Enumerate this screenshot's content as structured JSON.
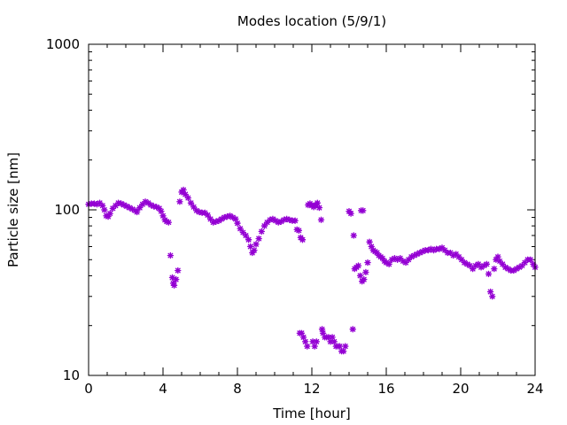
{
  "chart_data": {
    "type": "scatter",
    "title": "Modes location (5/9/1)",
    "xlabel": "Time [hour]",
    "ylabel": "Particle size [nm]",
    "xlim": [
      0,
      24
    ],
    "ylim": [
      10,
      1000
    ],
    "yscale": "log",
    "grid": false,
    "x_ticks": [
      0,
      4,
      8,
      12,
      16,
      20,
      24
    ],
    "x_tick_labels": [
      "0",
      "4",
      "8",
      "12",
      "16",
      "20",
      "24"
    ],
    "y_ticks": [
      10,
      100,
      1000
    ],
    "y_tick_labels": [
      "10",
      "100",
      "1000"
    ],
    "marker_color": "#9400d3",
    "marker": "star",
    "series": [
      {
        "points": [
          [
            0.0,
            108
          ],
          [
            0.15,
            109
          ],
          [
            0.3,
            109
          ],
          [
            0.45,
            108
          ],
          [
            0.6,
            110
          ],
          [
            0.75,
            106
          ],
          [
            0.85,
            100
          ],
          [
            0.95,
            92
          ],
          [
            1.05,
            91
          ],
          [
            1.15,
            95
          ],
          [
            1.3,
            102
          ],
          [
            1.45,
            106
          ],
          [
            1.6,
            110
          ],
          [
            1.75,
            109
          ],
          [
            1.9,
            107
          ],
          [
            2.05,
            105
          ],
          [
            2.2,
            103
          ],
          [
            2.35,
            101
          ],
          [
            2.5,
            99
          ],
          [
            2.6,
            97
          ],
          [
            2.75,
            103
          ],
          [
            2.9,
            108
          ],
          [
            3.05,
            112
          ],
          [
            3.2,
            110
          ],
          [
            3.35,
            107
          ],
          [
            3.5,
            105
          ],
          [
            3.65,
            104
          ],
          [
            3.8,
            102
          ],
          [
            3.9,
            98
          ],
          [
            4.0,
            92
          ],
          [
            4.1,
            87
          ],
          [
            4.2,
            85
          ],
          [
            4.3,
            84
          ],
          [
            4.4,
            53
          ],
          [
            4.5,
            39
          ],
          [
            4.55,
            36
          ],
          [
            4.6,
            35
          ],
          [
            4.7,
            38
          ],
          [
            4.8,
            43
          ],
          [
            4.9,
            112
          ],
          [
            5.0,
            128
          ],
          [
            5.1,
            132
          ],
          [
            5.2,
            124
          ],
          [
            5.35,
            118
          ],
          [
            5.5,
            110
          ],
          [
            5.65,
            104
          ],
          [
            5.8,
            99
          ],
          [
            5.95,
            97
          ],
          [
            6.1,
            96
          ],
          [
            6.25,
            96
          ],
          [
            6.4,
            93
          ],
          [
            6.55,
            88
          ],
          [
            6.7,
            84
          ],
          [
            6.85,
            85
          ],
          [
            7.0,
            86
          ],
          [
            7.15,
            88
          ],
          [
            7.3,
            90
          ],
          [
            7.45,
            91
          ],
          [
            7.6,
            92
          ],
          [
            7.75,
            90
          ],
          [
            7.9,
            88
          ],
          [
            8.0,
            83
          ],
          [
            8.15,
            77
          ],
          [
            8.3,
            73
          ],
          [
            8.45,
            70
          ],
          [
            8.6,
            66
          ],
          [
            8.7,
            60
          ],
          [
            8.8,
            55
          ],
          [
            8.9,
            57
          ],
          [
            9.0,
            62
          ],
          [
            9.15,
            67
          ],
          [
            9.3,
            74
          ],
          [
            9.45,
            80
          ],
          [
            9.6,
            84
          ],
          [
            9.75,
            87
          ],
          [
            9.9,
            88
          ],
          [
            10.05,
            86
          ],
          [
            10.2,
            84
          ],
          [
            10.35,
            85
          ],
          [
            10.5,
            87
          ],
          [
            10.65,
            88
          ],
          [
            10.8,
            87
          ],
          [
            10.95,
            86
          ],
          [
            11.1,
            86
          ],
          [
            11.2,
            76
          ],
          [
            11.3,
            75
          ],
          [
            11.35,
            18
          ],
          [
            11.4,
            68
          ],
          [
            11.45,
            18
          ],
          [
            11.5,
            66
          ],
          [
            11.55,
            17
          ],
          [
            11.65,
            16
          ],
          [
            11.75,
            15
          ],
          [
            11.8,
            107
          ],
          [
            11.9,
            109
          ],
          [
            12.0,
            106
          ],
          [
            12.05,
            16
          ],
          [
            12.1,
            104
          ],
          [
            12.15,
            15
          ],
          [
            12.2,
            107
          ],
          [
            12.25,
            16
          ],
          [
            12.3,
            110
          ],
          [
            12.4,
            103
          ],
          [
            12.5,
            87
          ],
          [
            12.55,
            19
          ],
          [
            12.6,
            18
          ],
          [
            12.7,
            17
          ],
          [
            12.8,
            17
          ],
          [
            12.9,
            17
          ],
          [
            13.0,
            16
          ],
          [
            13.1,
            17
          ],
          [
            13.2,
            16
          ],
          [
            13.3,
            15
          ],
          [
            13.4,
            15
          ],
          [
            13.5,
            15
          ],
          [
            13.6,
            14
          ],
          [
            13.7,
            14
          ],
          [
            13.8,
            15
          ],
          [
            14.0,
            98
          ],
          [
            14.1,
            95
          ],
          [
            14.2,
            19
          ],
          [
            14.25,
            70
          ],
          [
            14.3,
            44
          ],
          [
            14.4,
            45
          ],
          [
            14.5,
            46
          ],
          [
            14.6,
            40
          ],
          [
            14.65,
            99
          ],
          [
            14.7,
            37
          ],
          [
            14.75,
            99
          ],
          [
            14.8,
            38
          ],
          [
            14.9,
            42
          ],
          [
            15.0,
            48
          ],
          [
            15.1,
            64
          ],
          [
            15.2,
            60
          ],
          [
            15.3,
            57
          ],
          [
            15.4,
            56
          ],
          [
            15.5,
            55
          ],
          [
            15.6,
            53
          ],
          [
            15.7,
            52
          ],
          [
            15.8,
            51
          ],
          [
            15.9,
            49
          ],
          [
            16.0,
            48
          ],
          [
            16.15,
            47
          ],
          [
            16.3,
            50
          ],
          [
            16.45,
            51
          ],
          [
            16.6,
            50
          ],
          [
            16.75,
            51
          ],
          [
            16.9,
            49
          ],
          [
            17.05,
            48
          ],
          [
            17.2,
            50
          ],
          [
            17.35,
            52
          ],
          [
            17.5,
            53
          ],
          [
            17.65,
            54
          ],
          [
            17.8,
            55
          ],
          [
            17.95,
            56
          ],
          [
            18.1,
            57
          ],
          [
            18.25,
            57
          ],
          [
            18.4,
            58
          ],
          [
            18.55,
            57
          ],
          [
            18.7,
            58
          ],
          [
            18.85,
            58
          ],
          [
            19.0,
            59
          ],
          [
            19.15,
            57
          ],
          [
            19.3,
            55
          ],
          [
            19.45,
            55
          ],
          [
            19.6,
            53
          ],
          [
            19.75,
            54
          ],
          [
            19.9,
            52
          ],
          [
            20.05,
            50
          ],
          [
            20.2,
            48
          ],
          [
            20.35,
            47
          ],
          [
            20.5,
            46
          ],
          [
            20.65,
            44
          ],
          [
            20.8,
            46
          ],
          [
            20.95,
            47
          ],
          [
            21.1,
            45
          ],
          [
            21.25,
            46
          ],
          [
            21.4,
            47
          ],
          [
            21.5,
            41
          ],
          [
            21.6,
            32
          ],
          [
            21.7,
            30
          ],
          [
            21.8,
            44
          ],
          [
            21.9,
            50
          ],
          [
            22.0,
            52
          ],
          [
            22.1,
            49
          ],
          [
            22.25,
            47
          ],
          [
            22.4,
            45
          ],
          [
            22.55,
            44
          ],
          [
            22.7,
            43
          ],
          [
            22.85,
            43
          ],
          [
            23.0,
            44
          ],
          [
            23.15,
            45
          ],
          [
            23.3,
            46
          ],
          [
            23.45,
            48
          ],
          [
            23.6,
            50
          ],
          [
            23.75,
            50
          ],
          [
            23.9,
            47
          ],
          [
            24.0,
            45
          ]
        ]
      }
    ]
  }
}
